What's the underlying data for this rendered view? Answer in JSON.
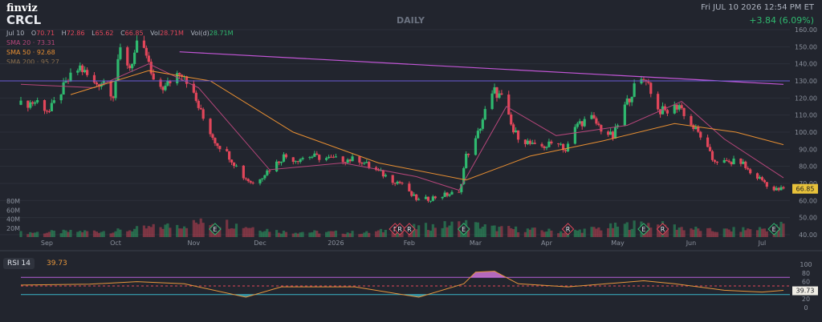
{
  "header": {
    "brand": "finviz",
    "ticker": "CRCL",
    "period": "DAILY",
    "datetime": "Fri JUL 10 2026 12:54 PM ET",
    "change": "+3.84 (6.09%)"
  },
  "ohlc": {
    "date": "Jul 10",
    "open_label": "O",
    "open": "70.71",
    "high_label": "H",
    "high": "72.86",
    "low_label": "L",
    "low": "65.62",
    "close_label": "C",
    "close": "66.85",
    "vol_label": "Vol",
    "vol": "28.71M",
    "vold_label": "Vol(d)",
    "vold": "28.71M"
  },
  "sma": [
    {
      "label": "SMA 20",
      "value": "73.31",
      "color": "#b5467a"
    },
    {
      "label": "SMA 50",
      "value": "92.68",
      "color": "#e88f32"
    },
    {
      "label": "SMA 200",
      "value": "95.27",
      "color": "#8a6f4e"
    }
  ],
  "rsi": {
    "label": "RSI 14",
    "value": "39.73",
    "ticks": [
      "100",
      "80",
      "60",
      "40",
      "20",
      "0"
    ],
    "overbought": 70,
    "oversold": 30,
    "mid": 50
  },
  "colors": {
    "up": "#2fb96f",
    "down": "#e1465a",
    "trendline": "#c256d6",
    "hline": "#6b5bd6",
    "background": "#22252e",
    "grid": "#2c303a"
  },
  "chart_data": {
    "type": "candlestick",
    "price_axis": {
      "ticks": [
        "160.00",
        "150.00",
        "140.00",
        "130.00",
        "120.00",
        "110.00",
        "100.00",
        "90.00",
        "80.00",
        "70.00",
        "60.00",
        "50.00",
        "40.00"
      ],
      "ylim": [
        40,
        160
      ]
    },
    "volume_axis": {
      "ticks": [
        "80M",
        "60M",
        "40M",
        "20M"
      ]
    },
    "x_labels": [
      "Sep",
      "Oct",
      "Nov",
      "Dec",
      "2026",
      "Feb",
      "Mar",
      "Apr",
      "May",
      "Jun",
      "Jul"
    ],
    "last_price_label": "66.85",
    "markers": [
      {
        "text": "E",
        "date": "2025-11-12"
      },
      {
        "text": "F",
        "date": "2026-01-27"
      },
      {
        "text": "R",
        "date": "2026-01-29"
      },
      {
        "text": "R",
        "date": "2026-02-02"
      },
      {
        "text": "E",
        "date": "2026-02-25"
      },
      {
        "text": "R",
        "date": "2026-04-10"
      },
      {
        "text": "E",
        "date": "2026-05-12"
      },
      {
        "text": "R",
        "date": "2026-05-20"
      },
      {
        "text": "E",
        "date": "2026-07-06"
      }
    ],
    "price_path": [
      [
        "2025-08-22",
        116
      ],
      [
        "2025-08-29",
        118
      ],
      [
        "2025-09-03",
        112
      ],
      [
        "2025-09-08",
        124
      ],
      [
        "2025-09-12",
        132
      ],
      [
        "2025-09-16",
        138
      ],
      [
        "2025-09-22",
        128
      ],
      [
        "2025-09-26",
        130
      ],
      [
        "2025-09-30",
        122
      ],
      [
        "2025-10-03",
        148
      ],
      [
        "2025-10-07",
        138
      ],
      [
        "2025-10-10",
        150
      ],
      [
        "2025-10-14",
        145
      ],
      [
        "2025-10-17",
        128
      ],
      [
        "2025-10-22",
        126
      ],
      [
        "2025-10-24",
        130
      ],
      [
        "2025-10-28",
        136
      ],
      [
        "2025-10-30",
        134
      ],
      [
        "2025-11-04",
        118
      ],
      [
        "2025-11-07",
        108
      ],
      [
        "2025-11-12",
        95
      ],
      [
        "2025-11-18",
        86
      ],
      [
        "2025-11-24",
        74
      ],
      [
        "2025-11-28",
        70
      ],
      [
        "2025-12-03",
        76
      ],
      [
        "2025-12-08",
        82
      ],
      [
        "2025-12-11",
        86
      ],
      [
        "2025-12-16",
        84
      ],
      [
        "2025-12-22",
        86
      ],
      [
        "2026-01-02",
        84
      ],
      [
        "2026-01-07",
        84
      ],
      [
        "2026-01-12",
        84
      ],
      [
        "2026-01-16",
        80
      ],
      [
        "2026-01-21",
        76
      ],
      [
        "2026-01-26",
        72
      ],
      [
        "2026-01-30",
        70
      ],
      [
        "2026-02-02",
        64
      ],
      [
        "2026-02-06",
        60
      ],
      [
        "2026-02-10",
        61
      ],
      [
        "2026-02-16",
        63
      ],
      [
        "2026-02-20",
        64
      ],
      [
        "2026-02-23",
        64
      ],
      [
        "2026-02-26",
        86
      ],
      [
        "2026-03-02",
        95
      ],
      [
        "2026-03-06",
        112
      ],
      [
        "2026-03-10",
        124
      ],
      [
        "2026-03-13",
        120
      ],
      [
        "2026-03-18",
        100
      ],
      [
        "2026-03-24",
        94
      ],
      [
        "2026-03-27",
        91
      ],
      [
        "2026-04-01",
        92
      ],
      [
        "2026-04-06",
        95
      ],
      [
        "2026-04-09",
        89
      ],
      [
        "2026-04-14",
        105
      ],
      [
        "2026-04-20",
        108
      ],
      [
        "2026-04-24",
        102
      ],
      [
        "2026-04-29",
        97
      ],
      [
        "2026-05-04",
        115
      ],
      [
        "2026-05-08",
        126
      ],
      [
        "2026-05-13",
        132
      ],
      [
        "2026-05-18",
        113
      ],
      [
        "2026-05-22",
        112
      ],
      [
        "2026-05-27",
        116
      ],
      [
        "2026-06-01",
        104
      ],
      [
        "2026-06-05",
        98
      ],
      [
        "2026-06-10",
        84
      ],
      [
        "2026-06-16",
        82
      ],
      [
        "2026-06-22",
        83
      ],
      [
        "2026-06-26",
        76
      ],
      [
        "2026-07-01",
        72
      ],
      [
        "2026-07-06",
        66
      ],
      [
        "2026-07-10",
        66.85
      ]
    ],
    "volume_path": [
      [
        "2025-08-22",
        10
      ],
      [
        "2025-10-03",
        14
      ],
      [
        "2025-11-12",
        35
      ],
      [
        "2025-12-10",
        12
      ],
      [
        "2026-01-15",
        10
      ],
      [
        "2026-02-02",
        20
      ],
      [
        "2026-02-26",
        30
      ],
      [
        "2026-03-10",
        20
      ],
      [
        "2026-04-10",
        12
      ],
      [
        "2026-05-12",
        30
      ],
      [
        "2026-06-10",
        14
      ],
      [
        "2026-07-06",
        20
      ],
      [
        "2026-07-10",
        28.71
      ]
    ],
    "sma20_path": [
      [
        "2025-08-22",
        128
      ],
      [
        "2025-09-22",
        126
      ],
      [
        "2025-10-15",
        140
      ],
      [
        "2025-11-05",
        126
      ],
      [
        "2025-12-05",
        78
      ],
      [
        "2026-01-05",
        82
      ],
      [
        "2026-02-05",
        74
      ],
      [
        "2026-02-23",
        66
      ],
      [
        "2026-03-15",
        115
      ],
      [
        "2026-04-05",
        98
      ],
      [
        "2026-05-05",
        104
      ],
      [
        "2026-05-28",
        118
      ],
      [
        "2026-06-15",
        96
      ],
      [
        "2026-07-10",
        73.31
      ]
    ],
    "sma50_path": [
      [
        "2025-09-12",
        122
      ],
      [
        "2025-10-15",
        136
      ],
      [
        "2025-11-10",
        130
      ],
      [
        "2025-12-15",
        100
      ],
      [
        "2026-01-20",
        82
      ],
      [
        "2026-02-26",
        72
      ],
      [
        "2026-03-25",
        86
      ],
      [
        "2026-04-25",
        95
      ],
      [
        "2026-05-25",
        105
      ],
      [
        "2026-06-20",
        100
      ],
      [
        "2026-07-10",
        92.68
      ]
    ],
    "trendline": [
      [
        "2025-10-28",
        147
      ],
      [
        "2026-07-10",
        128
      ]
    ],
    "hline": 130,
    "rsi_path": [
      [
        "2025-08-22",
        52
      ],
      [
        "2025-09-20",
        54
      ],
      [
        "2025-10-10",
        60
      ],
      [
        "2025-10-30",
        55
      ],
      [
        "2025-11-25",
        24
      ],
      [
        "2025-12-10",
        48
      ],
      [
        "2026-01-10",
        48
      ],
      [
        "2026-02-06",
        24
      ],
      [
        "2026-02-25",
        55
      ],
      [
        "2026-03-02",
        82
      ],
      [
        "2026-03-10",
        84
      ],
      [
        "2026-03-20",
        55
      ],
      [
        "2026-04-10",
        48
      ],
      [
        "2026-05-12",
        62
      ],
      [
        "2026-05-25",
        55
      ],
      [
        "2026-06-15",
        40
      ],
      [
        "2026-07-01",
        36
      ],
      [
        "2026-07-10",
        39.73
      ]
    ]
  }
}
